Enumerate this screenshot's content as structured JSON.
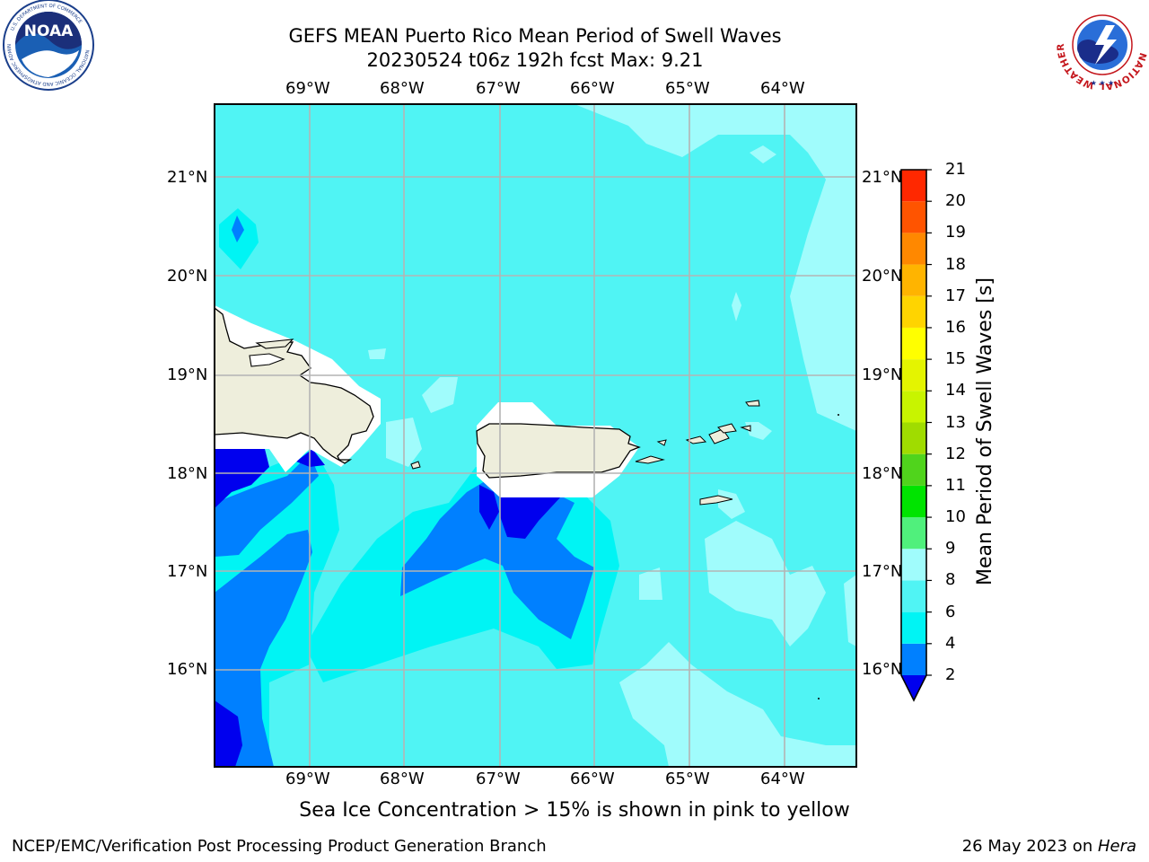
{
  "header": {
    "title_line1": "GEFS MEAN Puerto Rico Mean Period of Swell Waves",
    "title_line2": "20230524 t06z 192h fcst   Max: 9.21"
  },
  "logos": {
    "noara_text": "NOAA",
    "noaa_ring_text": "NATIONAL OCEANIC AND ATMOSPHERIC ADMINISTRATION",
    "noaa_ring_text_bottom": "U.S. DEPARTMENT OF COMMERCE",
    "nws_ring_text": "NATIONAL WEATHER SERVICE"
  },
  "map": {
    "lon_labels": [
      "69°W",
      "68°W",
      "67°W",
      "66°W",
      "65°W",
      "64°W"
    ],
    "lat_labels": [
      "21°N",
      "20°N",
      "19°N",
      "18°N",
      "17°N",
      "16°N"
    ],
    "colors": {
      "ocean_base": "#50f4f4",
      "light": "#a0fcfc",
      "cyan": "#00f4f4",
      "blue": "#0080ff",
      "navy": "#0000ee",
      "land": "#eeeedc"
    }
  },
  "colorbar": {
    "title": "Mean Period of Swell Waves [s]",
    "ticks": [
      "2",
      "4",
      "6",
      "8",
      "9",
      "10",
      "11",
      "12",
      "13",
      "14",
      "15",
      "16",
      "17",
      "18",
      "19",
      "20",
      "21"
    ],
    "colors": [
      "#0000ee",
      "#0080ff",
      "#00f4f4",
      "#50f4f4",
      "#a0fcfc",
      "#50f07c",
      "#00e400",
      "#50d41c",
      "#a0dc00",
      "#c8f400",
      "#e4f400",
      "#ffff00",
      "#ffd400",
      "#ffb400",
      "#ff8800",
      "#ff5400",
      "#ff2800",
      "#ff0000"
    ]
  },
  "caption": "Sea Ice Concentration > 15% is shown in pink to yellow",
  "footer": {
    "left": "NCEP/EMC/Verification Post Processing Product Generation Branch",
    "right_date": "26 May 2023 on ",
    "right_host": "Hera"
  }
}
